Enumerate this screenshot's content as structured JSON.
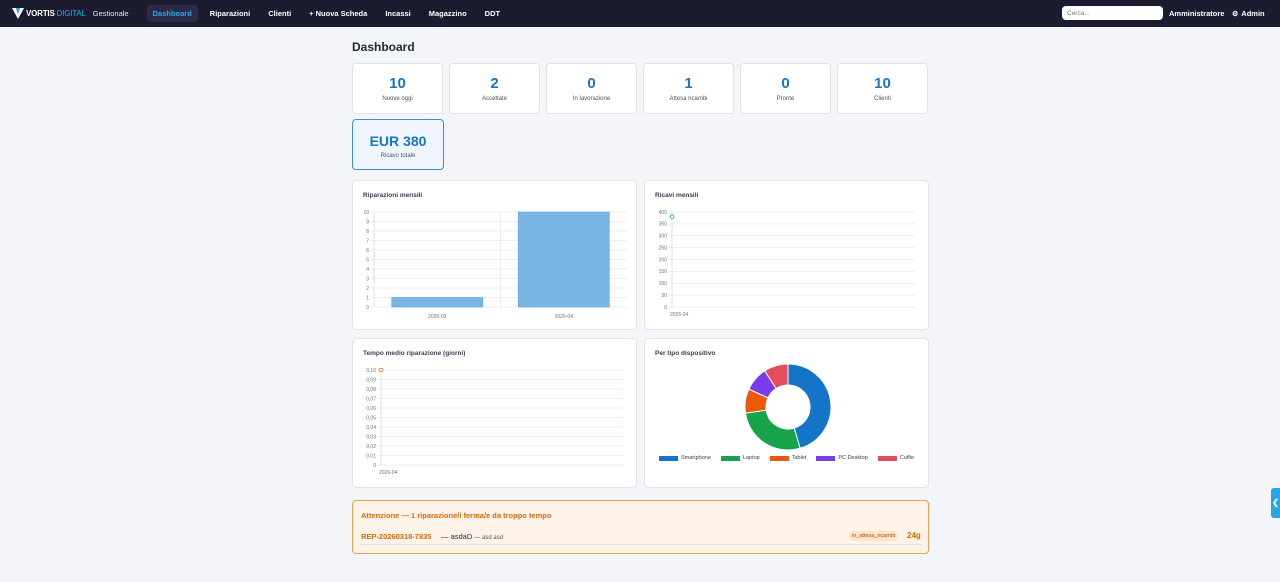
{
  "brand": {
    "name": "VORTIS",
    "name_accent": " DIGITAL",
    "subtitle": "Gestionale"
  },
  "nav": [
    {
      "label": "Dashboard",
      "active": true
    },
    {
      "label": "Riparazioni"
    },
    {
      "label": "Clienti"
    },
    {
      "label": "+ Nuova Scheda"
    },
    {
      "label": "Incassi"
    },
    {
      "label": "Magazzino"
    },
    {
      "label": "DDT"
    }
  ],
  "search": {
    "placeholder": "Cerca..."
  },
  "user": {
    "role": "Amministratore",
    "name": "Admin",
    "icon": "gear-icon"
  },
  "page_title": "Dashboard",
  "stats": [
    {
      "value": "10",
      "label": "Nuove oggi"
    },
    {
      "value": "2",
      "label": "Accettate"
    },
    {
      "value": "0",
      "label": "In lavorazione"
    },
    {
      "value": "1",
      "label": "Attesa ricambi"
    },
    {
      "value": "0",
      "label": "Pronte"
    },
    {
      "value": "10",
      "label": "Clienti"
    }
  ],
  "revenue": {
    "value": "EUR 380",
    "label": "Ricavo totale"
  },
  "chart_data": [
    {
      "type": "bar",
      "title": "Riparazioni mensili",
      "categories": [
        "2026-03",
        "2026-04"
      ],
      "values": [
        1,
        10
      ],
      "ylim": [
        0,
        10
      ],
      "yticks": [
        "0",
        "1",
        "2",
        "3",
        "4",
        "5",
        "6",
        "7",
        "8",
        "9",
        "10"
      ],
      "color": "#7ab6e4",
      "grid": true
    },
    {
      "type": "line",
      "title": "Ricavi mensili",
      "x": [
        "2026-04"
      ],
      "values": [
        380
      ],
      "ylim": [
        0,
        400
      ],
      "yticks": [
        "0",
        "50",
        "100",
        "150",
        "200",
        "250",
        "300",
        "350",
        "400"
      ],
      "color": "#3fb8a8",
      "grid": true
    },
    {
      "type": "line",
      "title": "Tempo medio riparazione (giorni)",
      "x": [
        "2026-04"
      ],
      "values": [
        0.1
      ],
      "ylim": [
        0,
        0.1
      ],
      "yticks": [
        "0",
        "0,01",
        "0,02",
        "0,03",
        "0,04",
        "0,05",
        "0,06",
        "0,07",
        "0,08",
        "0,09",
        "0,10"
      ],
      "color": "#f08a4b",
      "grid": true
    },
    {
      "type": "pie",
      "title": "Per tipo dispositivo",
      "labels": [
        "Smartphone",
        "Laptop",
        "Tablet",
        "PC Desktop",
        "Cuffie"
      ],
      "values": [
        5,
        3,
        1,
        1,
        1
      ],
      "colors": [
        "#1474c8",
        "#16a34a",
        "#ea580c",
        "#7c3aed",
        "#e54c5e"
      ],
      "legend": "bottom"
    }
  ],
  "alert": {
    "title": "Attenzione — 1 riparazione/i ferma/e da troppo tempo",
    "code": "REP-20260318-7835",
    "customer": "— asdaD",
    "device": "— asd asd",
    "status": "in_attesa_ricambi",
    "days": "24g"
  },
  "side_toggle": {
    "label": "❮",
    "icon": "chevron-left-icon"
  }
}
